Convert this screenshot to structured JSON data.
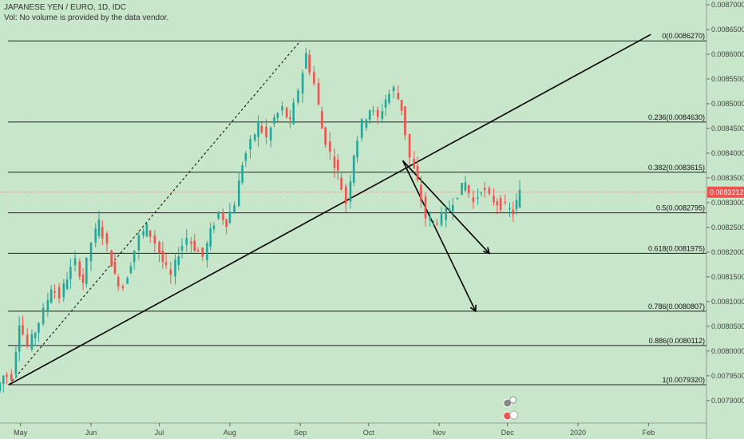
{
  "header": {
    "title": "JAPANESE YEN / EURO, 1D, IDC",
    "volume_note": "Vol: No volume is provided by the data vendor."
  },
  "colors": {
    "background": "#c8e6c9",
    "up": "#26a69a",
    "down": "#ef5350",
    "fib_line": "#222222",
    "trend_line": "#000000",
    "last_price": "#ef5350"
  },
  "chart_data": {
    "type": "candlestick",
    "ylim": [
      0.00789,
      0.0087
    ],
    "y_ticks": [
      "0.0087000",
      "0.0086500",
      "0.0086000",
      "0.0085500",
      "0.0085000",
      "0.0084500",
      "0.0084000",
      "0.0083500",
      "0.0083000",
      "0.0082500",
      "0.0082000",
      "0.0081500",
      "0.0081000",
      "0.0080500",
      "0.0080000",
      "0.0079500",
      "0.0079000"
    ],
    "x_range": [
      "2019-04-22",
      "2020-02-17"
    ],
    "x_ticks": [
      {
        "label": "May",
        "date": "2019-05-01"
      },
      {
        "label": "Jun",
        "date": "2019-06-01"
      },
      {
        "label": "Jul",
        "date": "2019-07-01"
      },
      {
        "label": "Aug",
        "date": "2019-08-01"
      },
      {
        "label": "Sep",
        "date": "2019-09-01"
      },
      {
        "label": "Oct",
        "date": "2019-10-01"
      },
      {
        "label": "Nov",
        "date": "2019-11-01"
      },
      {
        "label": "Dec",
        "date": "2019-12-01"
      },
      {
        "label": "2020",
        "date": "2020-01-01"
      },
      {
        "label": "Feb",
        "date": "2020-02-01"
      }
    ],
    "last_price": {
      "label": "0.0083212",
      "value": 0.0083212
    },
    "fib_levels": [
      {
        "label": "0(0.0086270)",
        "value": 0.008627
      },
      {
        "label": "0.236(0.0084630)",
        "value": 0.008463
      },
      {
        "label": "0.382(0.0083615)",
        "value": 0.0083615
      },
      {
        "label": "0.5(0.0082795)",
        "value": 0.0082795
      },
      {
        "label": "0.618(0.0081975)",
        "value": 0.0081975
      },
      {
        "label": "0.786(0.0080807)",
        "value": 0.0080807
      },
      {
        "label": "0.886(0.0080112)",
        "value": 0.0080112
      },
      {
        "label": "1(0.0079320)",
        "value": 0.007932
      }
    ],
    "closes": [
      {
        "date": "2019-04-22",
        "close": 0.00795
      },
      {
        "date": "2019-04-25",
        "close": 0.00795
      },
      {
        "date": "2019-04-29",
        "close": 0.00806
      },
      {
        "date": "2019-05-02",
        "close": 0.00801
      },
      {
        "date": "2019-05-06",
        "close": 0.00804
      },
      {
        "date": "2019-05-09",
        "close": 0.00808
      },
      {
        "date": "2019-05-13",
        "close": 0.00813
      },
      {
        "date": "2019-05-16",
        "close": 0.00811
      },
      {
        "date": "2019-05-20",
        "close": 0.00815
      },
      {
        "date": "2019-05-23",
        "close": 0.00818
      },
      {
        "date": "2019-05-27",
        "close": 0.00814
      },
      {
        "date": "2019-05-30",
        "close": 0.00822
      },
      {
        "date": "2019-06-03",
        "close": 0.00826
      },
      {
        "date": "2019-06-06",
        "close": 0.00821
      },
      {
        "date": "2019-06-10",
        "close": 0.00815
      },
      {
        "date": "2019-06-13",
        "close": 0.00813
      },
      {
        "date": "2019-06-17",
        "close": 0.00818
      },
      {
        "date": "2019-06-20",
        "close": 0.00823
      },
      {
        "date": "2019-06-24",
        "close": 0.00825
      },
      {
        "date": "2019-06-27",
        "close": 0.00822
      },
      {
        "date": "2019-07-01",
        "close": 0.00818
      },
      {
        "date": "2019-07-04",
        "close": 0.00815
      },
      {
        "date": "2019-07-08",
        "close": 0.0082
      },
      {
        "date": "2019-07-11",
        "close": 0.00823
      },
      {
        "date": "2019-07-15",
        "close": 0.00821
      },
      {
        "date": "2019-07-18",
        "close": 0.00819
      },
      {
        "date": "2019-07-22",
        "close": 0.00824
      },
      {
        "date": "2019-07-25",
        "close": 0.00828
      },
      {
        "date": "2019-07-29",
        "close": 0.00826
      },
      {
        "date": "2019-08-01",
        "close": 0.0083
      },
      {
        "date": "2019-08-05",
        "close": 0.00838
      },
      {
        "date": "2019-08-08",
        "close": 0.00842
      },
      {
        "date": "2019-08-12",
        "close": 0.00846
      },
      {
        "date": "2019-08-15",
        "close": 0.00843
      },
      {
        "date": "2019-08-19",
        "close": 0.00847
      },
      {
        "date": "2019-08-22",
        "close": 0.00849
      },
      {
        "date": "2019-08-26",
        "close": 0.00846
      },
      {
        "date": "2019-08-29",
        "close": 0.00853
      },
      {
        "date": "2019-09-02",
        "close": 0.0086
      },
      {
        "date": "2019-09-05",
        "close": 0.00854
      },
      {
        "date": "2019-09-09",
        "close": 0.00845
      },
      {
        "date": "2019-09-12",
        "close": 0.0084
      },
      {
        "date": "2019-09-16",
        "close": 0.00836
      },
      {
        "date": "2019-09-19",
        "close": 0.0083
      },
      {
        "date": "2019-09-23",
        "close": 0.0084
      },
      {
        "date": "2019-09-26",
        "close": 0.00846
      },
      {
        "date": "2019-09-30",
        "close": 0.00849
      },
      {
        "date": "2019-10-03",
        "close": 0.00847
      },
      {
        "date": "2019-10-07",
        "close": 0.00851
      },
      {
        "date": "2019-10-10",
        "close": 0.00853
      },
      {
        "date": "2019-10-14",
        "close": 0.00849
      },
      {
        "date": "2019-10-17",
        "close": 0.00839
      },
      {
        "date": "2019-10-21",
        "close": 0.00834
      },
      {
        "date": "2019-10-24",
        "close": 0.00827
      },
      {
        "date": "2019-10-28",
        "close": 0.00826
      },
      {
        "date": "2019-10-31",
        "close": 0.00827
      },
      {
        "date": "2019-11-04",
        "close": 0.00829
      },
      {
        "date": "2019-11-07",
        "close": 0.00832
      },
      {
        "date": "2019-11-11",
        "close": 0.00834
      },
      {
        "date": "2019-11-14",
        "close": 0.0083
      },
      {
        "date": "2019-11-18",
        "close": 0.00833
      },
      {
        "date": "2019-11-21",
        "close": 0.00831
      },
      {
        "date": "2019-11-25",
        "close": 0.0083
      },
      {
        "date": "2019-11-28",
        "close": 0.00829
      },
      {
        "date": "2019-12-02",
        "close": 0.00828
      },
      {
        "date": "2019-12-05",
        "close": 0.00832
      }
    ]
  }
}
